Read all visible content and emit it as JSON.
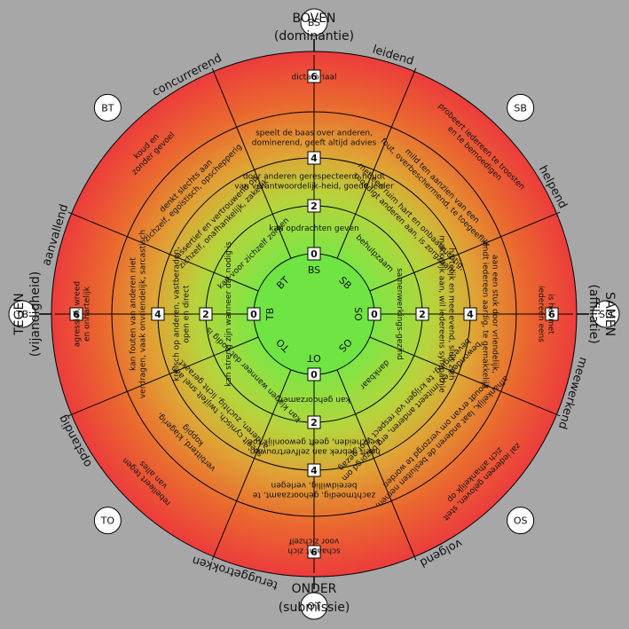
{
  "axes": {
    "top": {
      "line1": "BOVEN",
      "line2": "(dominantie)"
    },
    "bottom": {
      "line1": "ONDER",
      "line2": "(submissie)"
    },
    "left": {
      "line1": "TEGEN",
      "line2": "(vijandigheid)"
    },
    "right": {
      "line1": "SAMEN",
      "line2": "(affiliatie)"
    }
  },
  "sectors": [
    {
      "code": "BS",
      "name": "leidend"
    },
    {
      "code": "SB",
      "name": "helpend"
    },
    {
      "code": "SO",
      "name": "meewerkend"
    },
    {
      "code": "OS",
      "name": "volgend"
    },
    {
      "code": "OT",
      "name": "teruggetrokken"
    },
    {
      "code": "TO",
      "name": "opstandig"
    },
    {
      "code": "TB",
      "name": "aanvallend"
    },
    {
      "code": "BT",
      "name": "concurrerend"
    }
  ],
  "inner_codes": [
    "BS",
    "SB",
    "SO",
    "OS",
    "OT",
    "TO",
    "TB",
    "BT"
  ],
  "scale_numbers": [
    "0",
    "2",
    "4",
    "6"
  ],
  "ring_texts": {
    "BS": [
      "speelt de baas over anderen, dominerend, geeft altijd advies",
      "door anderen gerespecteerd, houdt van verantwoordelijk-heid, goede leider",
      "kan opdrachten geven",
      "dictatoriaal"
    ],
    "SB": [
      "mild ten aanzien van een fout, overbeschermend, te toegeeflijk",
      "met een ruim hart en onbaatzuchtig, moedigt anderen aan, is zorgzaam",
      "behulpzaam",
      "probeert iedereen te troosten en te bemoedigen"
    ],
    "SO": [
      "aan een stuk door vriendelijk, vindt iedereen aardig, te gemakkelijk",
      "hartelijk en meelevend, sluit zich makkelijk aan, wil iedereens sympathie",
      "samenwerkings-gezind",
      "is het met iedereen eens"
    ],
    "OS": [
      "afhankelijk, laat anderen de besluiten nemen, houdt ervan om verzorgd te worden",
      "bewondert en imiteert anderen, erg bezorgd om bevestiging, te krijgen vol respect voor gezag",
      "dankbaar",
      "zal iedereen geloven, stelt zich afhankelijk op"
    ],
    "OT": [
      "zachtmoedig, gehoorzaamt, te bereidwillig, verlegen",
      "heeft gebrek aan zelfvertrouwen, bescheiden, geeft gewoonlijk toe",
      "kan gehoorzamen",
      "schaamt zich voor zichzelf"
    ],
    "TO": [
      "verbitterd, klagerig, koppig",
      "speelt cynisch, twijfelt snel aan anderen, zuchtig, licht geraakt",
      "kan klagen wanneer dat nodig is",
      "rebelleert tegen van alles"
    ],
    "TB": [
      "kan fouten van anderen niet verdragen, vaak onvriendelijk, sarcastisch",
      "kritisch op anderen, vastberaden, open en direct",
      "kan streng zijn wanneer dat nodig is",
      "agressief, wreed en onhartelijk"
    ],
    "BT": [
      "denkt slechts aan zichzelf, egoïstisch, opschepperig",
      "assertief en vertrouwend op zichzelf, onafhankelijk, zakelijk",
      "kan voor zichzelf zorgen",
      "koud en zonder gevoel"
    ]
  },
  "colors": {
    "background": "#a7a7a7",
    "center": "#6ee542",
    "inner_ring": "#8fe046",
    "mid_ring": "#d8bf3c",
    "outer_ring": "#e8642c",
    "edge": "#e83b3b",
    "line": "#000000"
  }
}
